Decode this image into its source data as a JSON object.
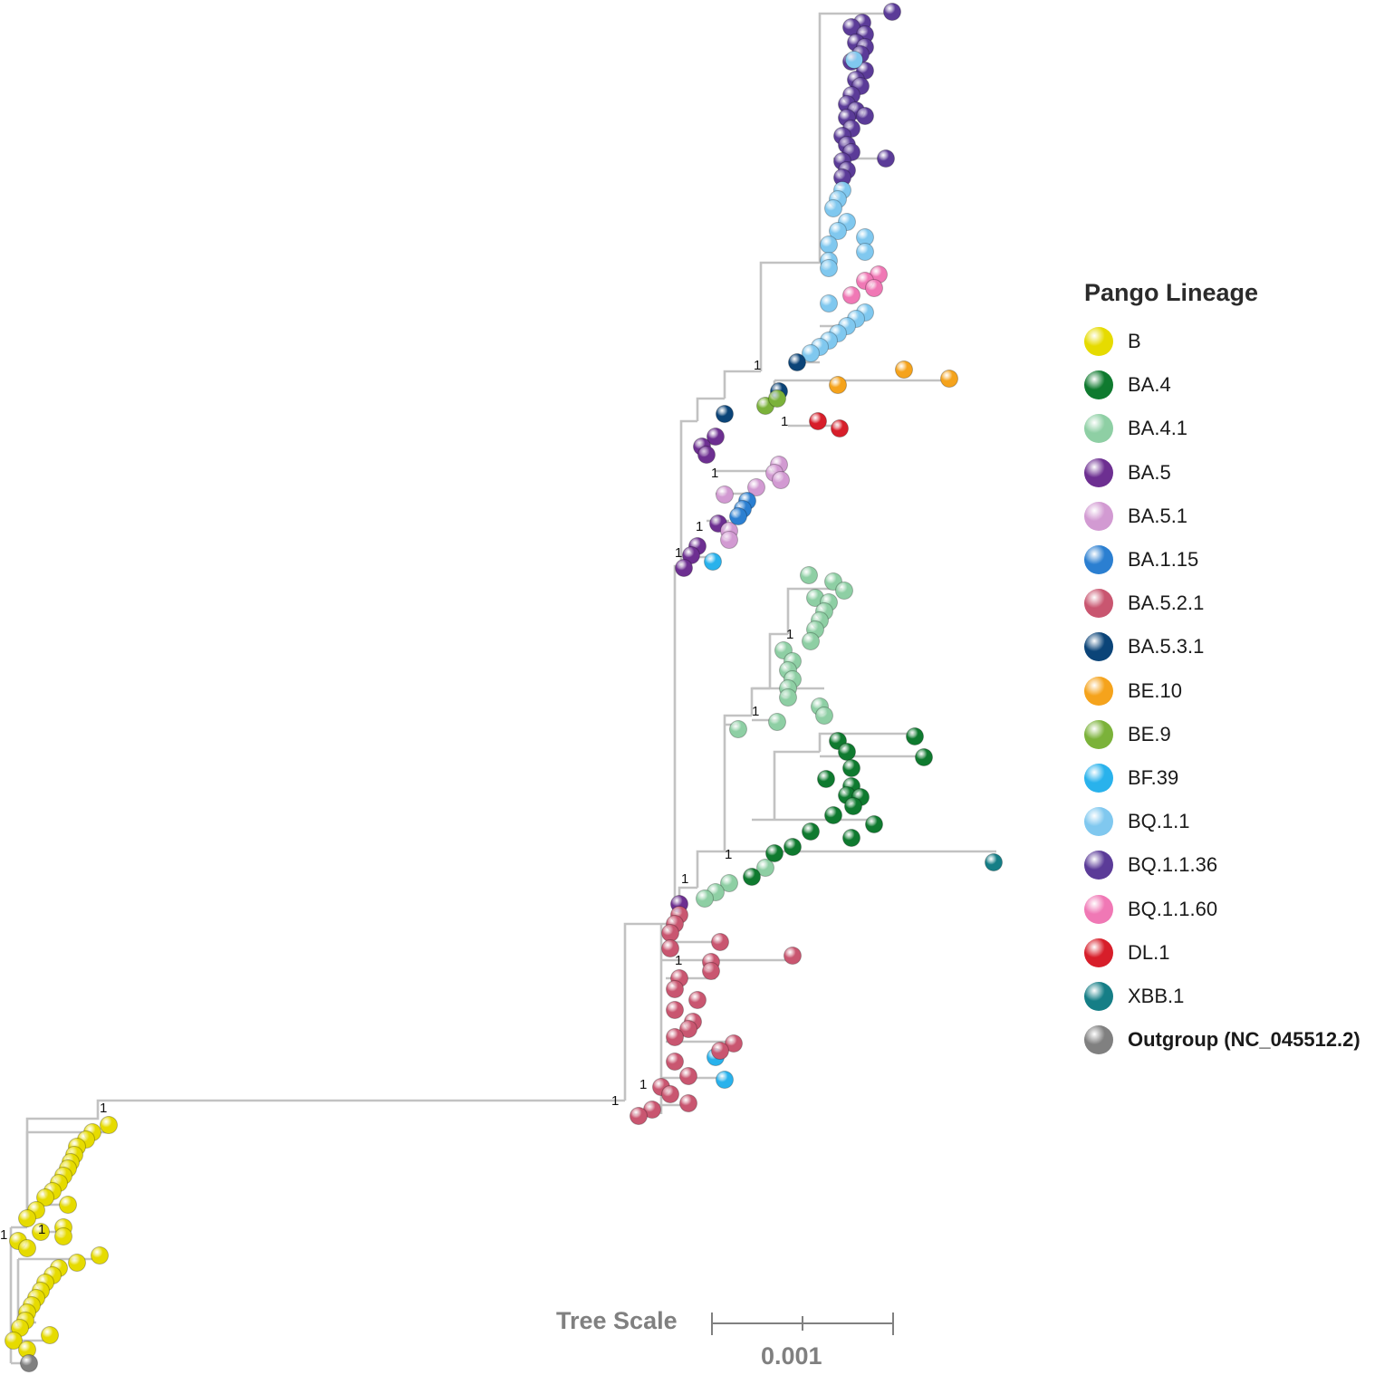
{
  "legend": {
    "title": "Pango Lineage",
    "items": [
      {
        "label": "B",
        "color": "#e6db00"
      },
      {
        "label": "BA.4",
        "color": "#0f7a2f"
      },
      {
        "label": "BA.4.1",
        "color": "#8ecfa4"
      },
      {
        "label": "BA.5",
        "color": "#6d2f91"
      },
      {
        "label": "BA.5.1",
        "color": "#d29ad2"
      },
      {
        "label": "BA.1.15",
        "color": "#2b7fd1"
      },
      {
        "label": "BA.5.2.1",
        "color": "#c95670"
      },
      {
        "label": "BA.5.3.1",
        "color": "#0b4478"
      },
      {
        "label": "BE.10",
        "color": "#f5a31c"
      },
      {
        "label": "BE.9",
        "color": "#7bb23a"
      },
      {
        "label": "BF.39",
        "color": "#29b2ec"
      },
      {
        "label": "BQ.1.1",
        "color": "#80c8ef"
      },
      {
        "label": "BQ.1.1.36",
        "color": "#5b3b98"
      },
      {
        "label": "BQ.1.1.60",
        "color": "#f078b5"
      },
      {
        "label": "DL.1",
        "color": "#d71e2a"
      },
      {
        "label": "XBB.1",
        "color": "#157e86"
      },
      {
        "label": "Outgroup (NC_045512.2)",
        "color": "#808080",
        "bold": true
      }
    ]
  },
  "scale": {
    "title": "Tree Scale",
    "value": "0.001"
  },
  "support_label": "1"
}
